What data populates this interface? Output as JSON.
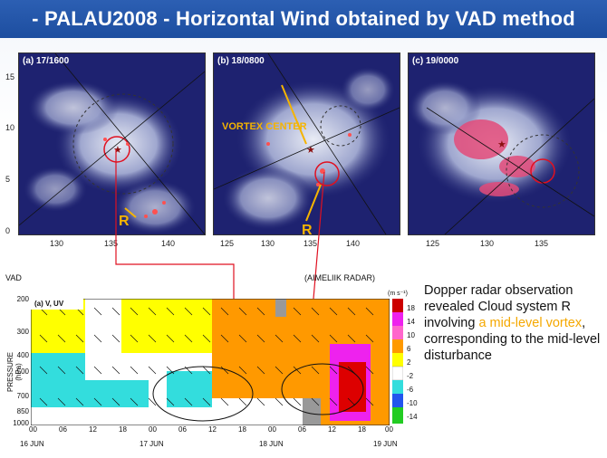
{
  "slide": {
    "title": "- PALAU2008 -  Horizontal Wind obtained by VAD method"
  },
  "satellite_panels": [
    {
      "label": "(a) 17/1600",
      "xticks": [
        "130",
        "135",
        "140"
      ]
    },
    {
      "label": "(b) 18/0800",
      "xticks": [
        "125",
        "130",
        "135",
        "140"
      ]
    },
    {
      "label": "(c) 19/0000",
      "xticks": [
        "125",
        "130",
        "135"
      ]
    }
  ],
  "lat_ticks": [
    "15",
    "10",
    "5",
    "0"
  ],
  "annotations": {
    "vortex_center": "VORTEX CENTER",
    "r_label_a": "R",
    "r_label_b": "R"
  },
  "time_section": {
    "left_label": "VAD",
    "right_label": "(AIMELIIK RADAR)",
    "panel_label": "(a) V, UV",
    "ylabel": "PRESSURE (hPa)",
    "pressure_ticks": [
      "200",
      "300",
      "400",
      "500",
      "700",
      "850",
      "1000"
    ],
    "hour_ticks": [
      "00",
      "06",
      "12",
      "18",
      "00",
      "06",
      "12",
      "18",
      "00",
      "06",
      "12",
      "18",
      "00"
    ],
    "day_labels": [
      "16 JUN",
      "17 JUN",
      "18 JUN",
      "19 JUN"
    ],
    "unit": "(m s⁻¹)",
    "colorbar": [
      "18",
      "14",
      "10",
      "6",
      "2",
      "-2",
      "-6",
      "-10",
      "-14"
    ]
  },
  "description": {
    "part1": "Dopper radar observation revealed Cloud system R involving ",
    "highlight": "a mid-level vortex",
    "part2": ", corresponding to the mid-level disturbance"
  }
}
